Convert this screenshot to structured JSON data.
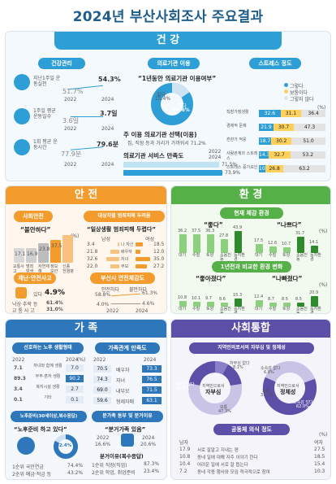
{
  "title": "2024년 부산사회조사 주요결과",
  "health": {
    "banner": "건 강",
    "mgmt": {
      "label": "건강관리",
      "items": [
        {
          "name": "지난1주일 운동실천",
          "v2022": "51.7%",
          "v2024": "54.3%"
        },
        {
          "name": "1주일 평균 운동일수",
          "v2022": "3.6일",
          "v2024": "3.7일"
        },
        {
          "name": "1회 평균 운동시간",
          "v2022": "77.9분",
          "v2024": "79.6분"
        }
      ],
      "year1": "2022",
      "year2": "2024"
    },
    "medical": {
      "label": "의료기관 이용",
      "question": "“1년동안 의료기관 이용여부”",
      "yes_label": "있다",
      "yes_value": "84.6%",
      "no_label": "없다",
      "no_value": "15.4%",
      "main_use": "주 이용 의료기관 선택(이용)",
      "main_use_detail": "집, 직장 등과 거리가 가까워서 71.2%",
      "satisfaction": "의료기관 서비스 만족도",
      "legend1": "2022",
      "legend2": "2024",
      "sat2022": "71.5%",
      "sat2024": "73.9%"
    },
    "stress": {
      "label": "스트레스 정도",
      "legend": [
        "그렇다",
        "보통이다",
        "그렇지 않다"
      ],
      "unit": "(%)",
      "rows": [
        {
          "name": "직장가정생활",
          "a": "32.6",
          "b": "31.1",
          "c": "36.4"
        },
        {
          "name": "경제적 문제",
          "a": "21.9",
          "b": "30.7",
          "c": "47.3"
        },
        {
          "name": "흔한가 적응",
          "a": "18.7",
          "b": "30.2",
          "c": "51.0"
        },
        {
          "name": "사람관계의 스트레스",
          "a": "14.3",
          "b": "32.7",
          "c": "53.2"
        },
        {
          "name": "스트레스 증가요인",
          "a": "10.0",
          "b": "26.8",
          "c": "63.2"
        }
      ]
    }
  },
  "safety": {
    "banner": "안 전",
    "social": {
      "label": "사회안전",
      "quote": "“불안하다”",
      "bars": [
        {
          "name": "교통사고",
          "v": "17.1"
        },
        {
          "name": "범죄 발생",
          "v": "16.9"
        },
        {
          "name": "자연재해",
          "v": "23.8"
        },
        {
          "name": "정보 보안",
          "v": "37.5"
        },
        {
          "name": "신종 전염병",
          "v": ""
        }
      ],
      "unit": "(%)"
    },
    "crime": {
      "label": "대상자별 범죄피해 두려움",
      "quote": "“일상생활 범죄피해 두렵다”",
      "left_head": "남성",
      "right_head": "여성",
      "rows": [
        {
          "name": "나 자신",
          "m": "3.4",
          "f": "18.5"
        },
        {
          "name": "배우자",
          "m": "21.8",
          "f": "12.0"
        },
        {
          "name": "자녀",
          "m": "32.6",
          "f": "35.0"
        },
        {
          "name": "부모",
          "m": "22.0",
          "f": "27.2"
        }
      ]
    },
    "disaster": {
      "label": "재난·안전사고",
      "yes": "있다",
      "yes_v": "4.9%",
      "items": [
        {
          "name": "낙상·추락 등",
          "v": "61.4%"
        },
        {
          "name": "교 통 사 고",
          "v": "31.0%"
        }
      ]
    },
    "sense": {
      "label": "부산시 안전체감도",
      "leg1": "안전하다",
      "leg2": "불안하다",
      "v1a": "58.8%",
      "v1b": "61.3%",
      "v2a": "4.0%",
      "v2b": "4.6%",
      "y1": "2022",
      "y2": "2024"
    }
  },
  "env": {
    "banner": "환 경",
    "current": {
      "label": "현재 체감 환경",
      "good": "“좋다”",
      "bad": "“나쁘다”",
      "good_vals": [
        "36.2",
        "37.5",
        "36.3",
        "27.8",
        "43.9"
      ],
      "bad_vals": [
        "17.5",
        "12.6",
        "10.7",
        "31.7",
        "14.1"
      ],
      "cats": [
        "대기",
        "수질",
        "토양",
        "소음진동",
        "녹지환경"
      ],
      "unit": "(%)"
    },
    "compare": {
      "label": "1년전과 비교한 환경 변화",
      "good": "“좋아졌다”",
      "bad": "“나빠졌다”",
      "good_vals": [
        "10.8",
        "10.1",
        "9.7",
        "8.6",
        "15.3"
      ],
      "bad_vals": [
        "12.4",
        "8.7",
        "8.5",
        "8.5",
        "20.9"
      ],
      "cats": [
        "대기",
        "수질",
        "토양",
        "소음진동",
        "녹지환경"
      ],
      "unit": "(%)"
    }
  },
  "family": {
    "banner": "가 족",
    "elder": {
      "label": "선호하는 노후 생활형태",
      "unit": "(%)",
      "rows": [
        {
          "l": "7.1",
          "name": "자녀와 함께 생활",
          "r": "7.0"
        },
        {
          "l": "89.3",
          "name": "부부·혼자 생활",
          "r": "90.2"
        },
        {
          "l": "3.4",
          "name": "복지시설 생활",
          "r": "2.7"
        },
        {
          "l": "0.1",
          "name": "기타",
          "r": "0.1"
        }
      ],
      "y1": "2022",
      "y2": "2024"
    },
    "satis": {
      "label": "가족관계 만족도",
      "unit": "(%)",
      "rows": [
        {
          "a": "70.5",
          "name": "배우자",
          "b": "73.3"
        },
        {
          "a": "74.3",
          "name": "자녀",
          "b": "76.5"
        },
        {
          "a": "69.0",
          "name": "내부모",
          "b": "71.5"
        },
        {
          "a": "59.6",
          "name": "형제자매",
          "b": "63.1"
        }
      ],
      "y1": "2022",
      "y2": "2024"
    },
    "prep": {
      "label": "노후준비(30세이상,복수응답)",
      "quote": "“노후준비 하고 있다”",
      "pct": "82.4%",
      "items": [
        {
          "name": "1순위 국민연금",
          "v": "74.4%"
        },
        {
          "name": "2순위 예금·적금 등",
          "v": "43.2%"
        }
      ]
    },
    "housework": {
      "label": "분가족 동부 및 분거이유",
      "quote": "“분거가족 있음”",
      "y1": "2022",
      "y2": "2024",
      "v1": "16.6%",
      "v2": "20.6%",
      "reason": "분거이유(복수응답)",
      "items": [
        {
          "name": "1순위 직장(직업)",
          "v": "87.3%"
        },
        {
          "name": "2순위 학업, 취업준비",
          "v": "23.4%"
        }
      ]
    }
  },
  "social": {
    "banner": "사회통합",
    "local": {
      "label": "지역민의로서의 자부심 및 정체성",
      "pride": {
        "center": "자부심",
        "sub": "지역민으로서",
        "yes": "자부심 있다",
        "yes_v": "44.6%",
        "mid": "자부심 없다",
        "mid_v": "8.1%",
        "normal": "보통",
        "normal_v": "47.3%"
      },
      "ident": {
        "center": "정체성",
        "sub": "지역민으로서",
        "yes": "소속감 있다",
        "yes_v": "62.0%",
        "no": "소속감 없다",
        "no_v": "6.8%",
        "normal": "보통",
        "normal_v": "31.2%"
      }
    },
    "community": {
      "label": "공동체 의식 정도",
      "head_l": "남자",
      "head_r": "여자",
      "unit": "(%)",
      "rows": [
        {
          "m": "17.9",
          "name": "서로 잘알고 지내는 편",
          "f": "27.5"
        },
        {
          "m": "10.8",
          "name": "동네 일에 대해 자주 이야기 한다",
          "f": "18.5"
        },
        {
          "m": "10.4",
          "name": "어려운 일에 서로 잘 돕는다",
          "f": "15.4"
        },
        {
          "m": "7.2",
          "name": "동네 각종 행사와 모임 적극적으로 참여",
          "f": "10.3"
        }
      ]
    }
  }
}
